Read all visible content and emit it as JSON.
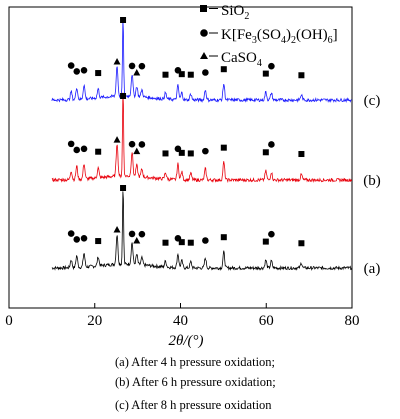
{
  "chart_data": {
    "type": "line",
    "x_label": "2θ/(°)",
    "xlim": [
      0,
      80
    ],
    "x_ticks": [
      "0",
      "20",
      "40",
      "60",
      "80"
    ],
    "y_ticks_shown": false,
    "legend": {
      "placement": "top-right",
      "entries": [
        {
          "marker": "square",
          "label": "SiO2"
        },
        {
          "marker": "circle",
          "label": "K[Fe3(SO4)2(OH)6]"
        },
        {
          "marker": "triangle",
          "label": "CaSO4"
        }
      ]
    },
    "series": [
      {
        "name": "(a)",
        "color": "#000000"
      },
      {
        "name": "(b)",
        "color": "#e8000b"
      },
      {
        "name": "(c)",
        "color": "#1a1aff"
      }
    ],
    "peaks": [
      {
        "x": 14.5,
        "h": 8,
        "phase": "circle"
      },
      {
        "x": 15.8,
        "h": 12,
        "phase": "circle"
      },
      {
        "x": 17.5,
        "h": 14,
        "phase": "circle"
      },
      {
        "x": 20.8,
        "h": 9,
        "phase": "square"
      },
      {
        "x": 25.2,
        "h": 30,
        "phase": "triangle"
      },
      {
        "x": 26.6,
        "h": 78,
        "phase": "square"
      },
      {
        "x": 28.7,
        "h": 22,
        "phase": "circle"
      },
      {
        "x": 29.8,
        "h": 10,
        "phase": "triangle"
      },
      {
        "x": 31.0,
        "h": 7,
        "phase": "circle"
      },
      {
        "x": 36.5,
        "h": 6,
        "phase": "square"
      },
      {
        "x": 39.4,
        "h": 14,
        "phase": "circle"
      },
      {
        "x": 40.3,
        "h": 7,
        "phase": "square"
      },
      {
        "x": 42.4,
        "h": 6,
        "phase": "square"
      },
      {
        "x": 45.8,
        "h": 10,
        "phase": "circle"
      },
      {
        "x": 50.1,
        "h": 16,
        "phase": "square"
      },
      {
        "x": 59.9,
        "h": 8,
        "phase": "square"
      },
      {
        "x": 61.2,
        "h": 7,
        "phase": "circle"
      },
      {
        "x": 68.2,
        "h": 5,
        "phase": "square"
      }
    ]
  },
  "captions": {
    "a": "(a) After 4 h pressure oxidation;",
    "b": "(b) After 6 h pressure oxidation;",
    "c": "(c) After 8 h pressure oxidation"
  },
  "colors": {
    "series_a": "#000000",
    "series_b": "#e8000b",
    "series_c": "#1a1aff"
  }
}
